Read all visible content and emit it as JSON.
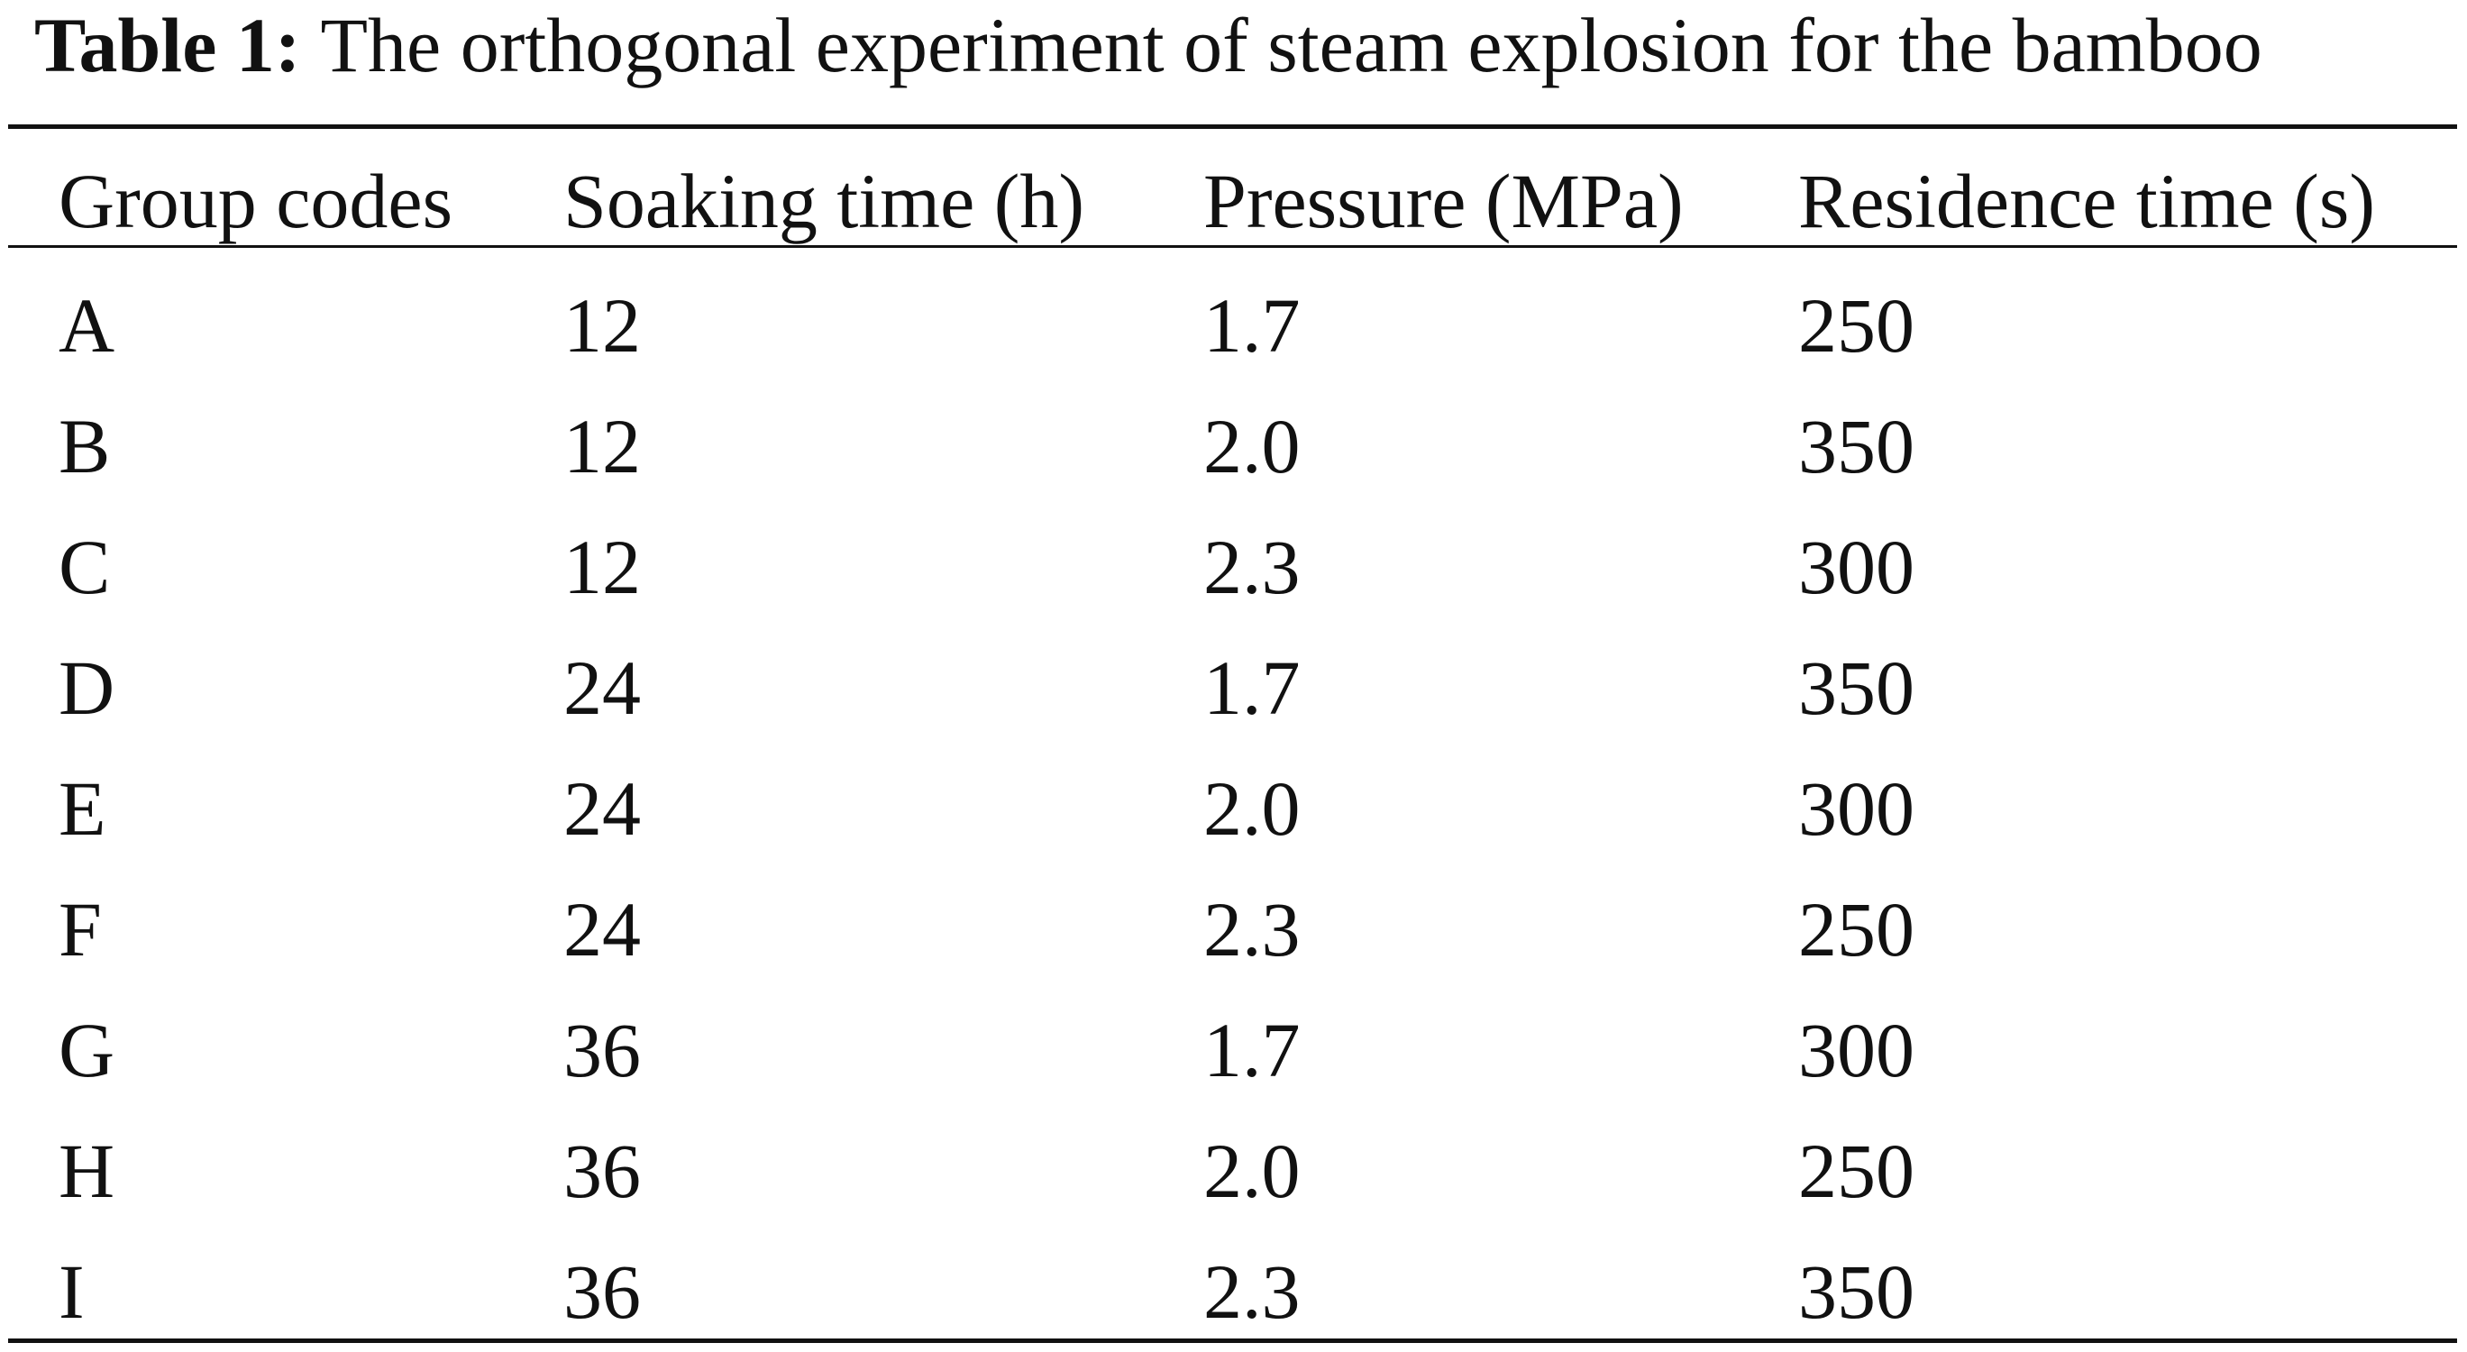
{
  "caption": {
    "label": "Table 1:",
    "text": "The orthogonal experiment of steam explosion for the bamboo"
  },
  "table": {
    "headers": [
      "Group codes",
      "Soaking time (h)",
      "Pressure (MPa)",
      "Residence time (s)"
    ],
    "rows": [
      [
        "A",
        "12",
        "1.7",
        "250"
      ],
      [
        "B",
        "12",
        "2.0",
        "350"
      ],
      [
        "C",
        "12",
        "2.3",
        "300"
      ],
      [
        "D",
        "24",
        "1.7",
        "350"
      ],
      [
        "E",
        "24",
        "2.0",
        "300"
      ],
      [
        "F",
        "24",
        "2.3",
        "250"
      ],
      [
        "G",
        "36",
        "1.7",
        "300"
      ],
      [
        "H",
        "36",
        "2.0",
        "250"
      ],
      [
        "I",
        "36",
        "2.3",
        "350"
      ]
    ]
  }
}
